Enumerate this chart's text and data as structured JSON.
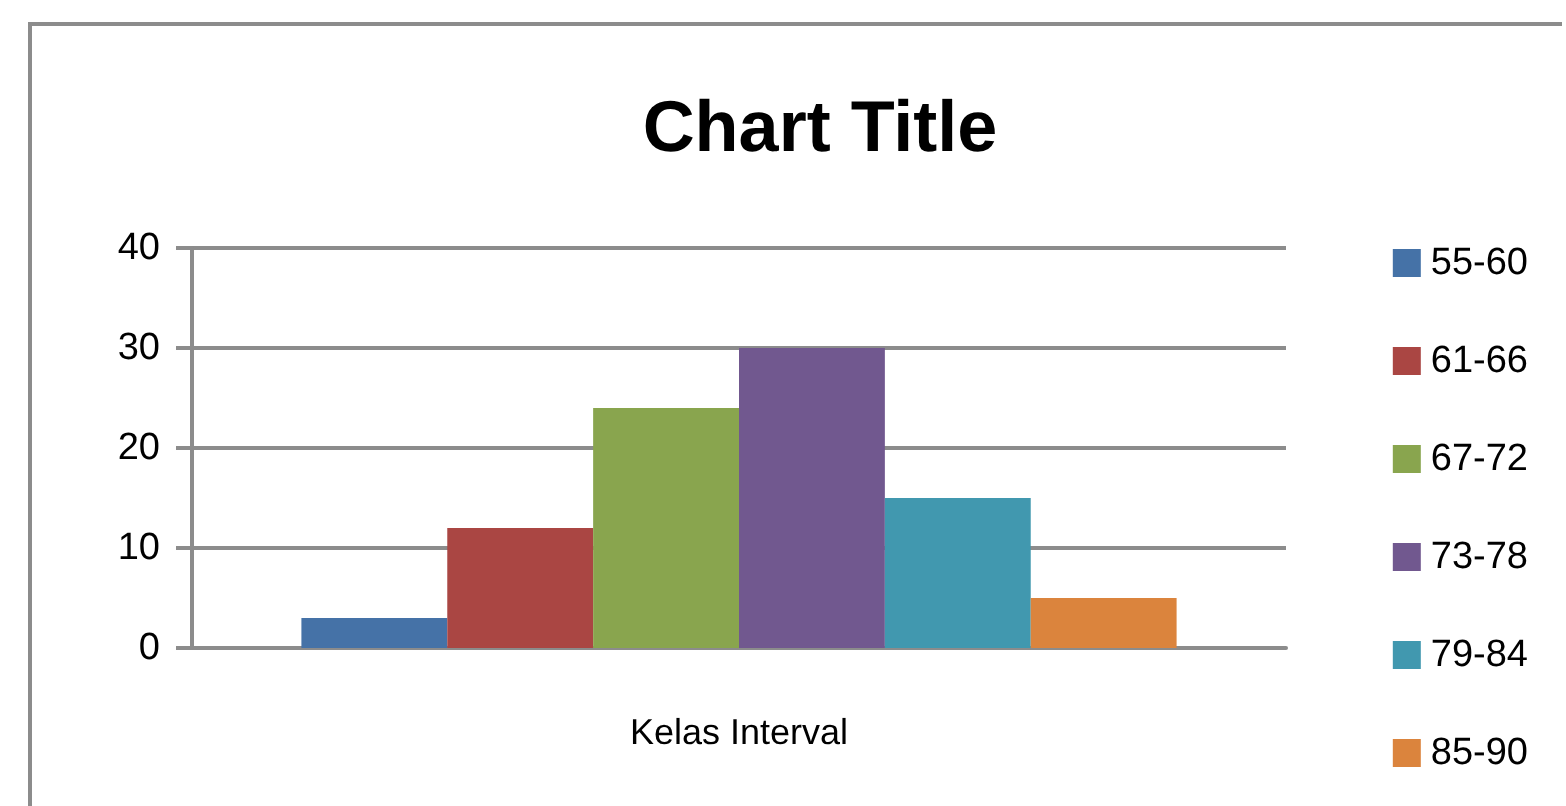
{
  "chart_data": {
    "type": "bar",
    "title": "Chart Title",
    "categories": [
      "Kelas Interval"
    ],
    "series": [
      {
        "name": "55-60",
        "color": "#4572a7",
        "values": [
          3
        ]
      },
      {
        "name": "61-66",
        "color": "#aa4643",
        "values": [
          12
        ]
      },
      {
        "name": "67-72",
        "color": "#89a54e",
        "values": [
          24
        ]
      },
      {
        "name": "73-78",
        "color": "#71588f",
        "values": [
          30
        ]
      },
      {
        "name": "79-84",
        "color": "#4198af",
        "values": [
          15
        ]
      },
      {
        "name": "85-90",
        "color": "#db843d",
        "values": [
          5
        ]
      }
    ],
    "ylim": [
      0,
      40
    ],
    "yticks": [
      0,
      10,
      20,
      30,
      40
    ],
    "grid": "y",
    "legend": "right"
  }
}
